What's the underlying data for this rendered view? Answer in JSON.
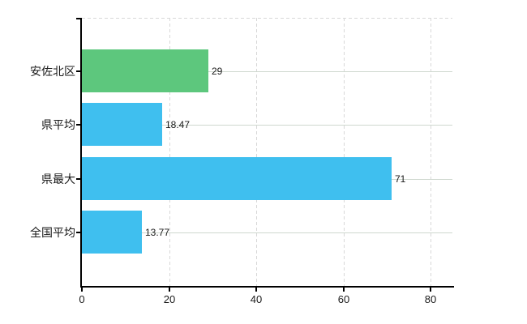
{
  "chart_data": {
    "type": "bar",
    "orientation": "horizontal",
    "title": "",
    "xlabel": "",
    "ylabel": "",
    "categories": [
      "安佐北区",
      "県平均",
      "県最大",
      "全国平均"
    ],
    "values": [
      29,
      18.47,
      71,
      13.77
    ],
    "value_labels": [
      "29",
      "18.47",
      "71",
      "13.77"
    ],
    "bar_colors": [
      "#5dc77d",
      "#3fbfef",
      "#3fbfef",
      "#3fbfef"
    ],
    "xlim": [
      0,
      85
    ],
    "x_ticks": [
      0,
      20,
      40,
      60,
      80
    ],
    "x_tick_labels": [
      "0",
      "20",
      "40",
      "60",
      "80"
    ],
    "grid": true,
    "legend": "none",
    "styles": {
      "background": "#ffffff",
      "axis_color": "#000000",
      "grid_h_color": "#cfd8cf",
      "grid_v_color": "#d8d8d8",
      "top_border_color": "#d8d8d8",
      "text_color": "#1a1a1a",
      "green": "#5dc77d",
      "blue": "#3fbfef"
    }
  }
}
